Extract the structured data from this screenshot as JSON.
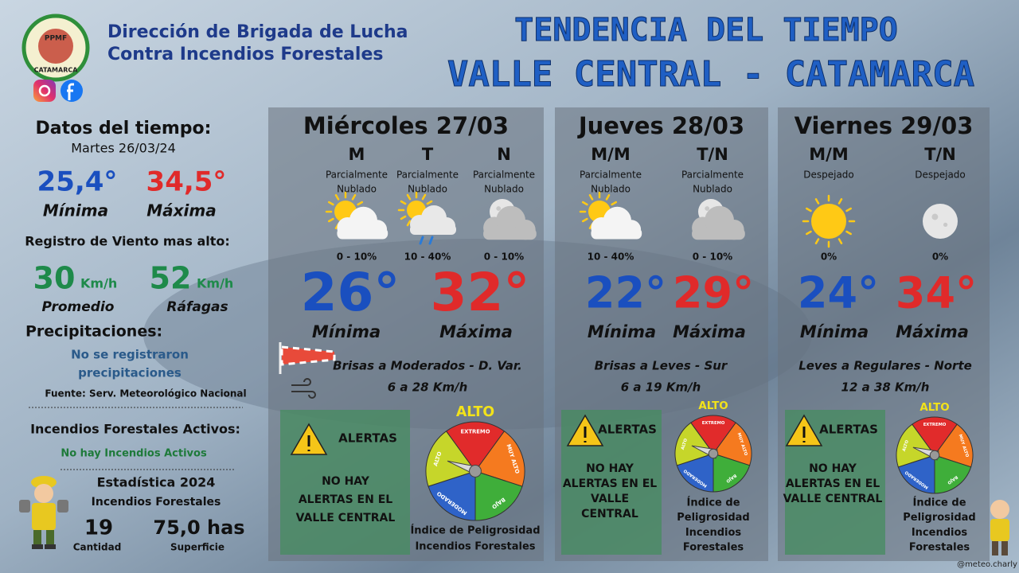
{
  "header": {
    "logo": {
      "top": "PPMF",
      "bottom": "CATAMARCA"
    },
    "org_line1": "Dirección de Brigada de Lucha",
    "org_line2": "Contra Incendios Forestales",
    "title_line1": "TENDENCIA DEL TIEMPO",
    "title_line2": "VALLE CENTRAL - CATAMARCA"
  },
  "sidebar": {
    "weather_title": "Datos del tiempo:",
    "date": "Martes 26/03/24",
    "min_value": "25,4°",
    "min_label": "Mínima",
    "max_value": "34,5°",
    "max_label": "Máxima",
    "wind_title": "Registro de Viento mas alto:",
    "wind_avg": "30",
    "wind_avg_unit": "Km/h",
    "wind_avg_label": "Promedio",
    "wind_gust": "52",
    "wind_gust_unit": "Km/h",
    "wind_gust_label": "Ráfagas",
    "precip_title": "Precipitaciones:",
    "precip_text": [
      "No se registraron",
      "precipitaciones"
    ],
    "source": "Fuente: Serv. Meteorológico Nacional",
    "fires_title": "Incendios Forestales Activos:",
    "fires_text": "No hay Incendios Activos",
    "stats_title": "Estadística 2024",
    "stats_subtitle": "Incendios Forestales",
    "count": "19",
    "count_label": "Cantidad",
    "area": "75,0 has",
    "area_label": "Superficie"
  },
  "gauge_labels": [
    "EXTREMO",
    "MUY ALTO",
    "BAJO",
    "MODERADO",
    "ALTO"
  ],
  "days": [
    {
      "day": "Miércoles 27/03",
      "periods": [
        {
          "label": "M",
          "sky": [
            "Parcialmente",
            "Nublado"
          ],
          "rain": "0 - 10%"
        },
        {
          "label": "T",
          "sky": [
            "Parcialmente",
            "Nublado"
          ],
          "rain": "10 - 40%"
        },
        {
          "label": "N",
          "sky": [
            "Parcialmente",
            "Nublado"
          ],
          "rain": "0 - 10%"
        }
      ],
      "min": "26°",
      "min_label": "Mínima",
      "max": "32°",
      "max_label": "Máxima",
      "wind": [
        "Brisas a Moderados  - D. Var.",
        "6 a 28 Km/h"
      ],
      "alert_title": "ALERTAS",
      "alert_text": [
        "NO HAY",
        "ALERTAS EN EL",
        "VALLE CENTRAL"
      ],
      "gauge_level": "ALTO",
      "index_text": [
        "Índice de Peligrosidad",
        "Incendios Forestales"
      ]
    },
    {
      "day": "Jueves 28/03",
      "periods": [
        {
          "label": "M/M",
          "sky": [
            "Parcialmente",
            "Nublado"
          ],
          "rain": "10 - 40%"
        },
        {
          "label": "T/N",
          "sky": [
            "Parcialmente",
            "Nublado"
          ],
          "rain": "0 - 10%"
        }
      ],
      "min": "22°",
      "min_label": "Mínima",
      "max": "29°",
      "max_label": "Máxima",
      "wind": [
        "Brisas a Leves - Sur",
        "6 a 19 Km/h"
      ],
      "alert_title": "ALERTAS",
      "alert_text": [
        "NO HAY",
        "ALERTAS EN EL",
        "VALLE",
        "CENTRAL"
      ],
      "gauge_level": "ALTO",
      "index_text": [
        "Índice de",
        "Peligrosidad",
        "Incendios",
        "Forestales"
      ]
    },
    {
      "day": "Viernes 29/03",
      "periods": [
        {
          "label": "M/M",
          "sky": [
            "Despejado"
          ],
          "rain": "0%"
        },
        {
          "label": "T/N",
          "sky": [
            "Despejado"
          ],
          "rain": "0%"
        }
      ],
      "min": "24°",
      "min_label": "Mínima",
      "max": "34°",
      "max_label": "Máxima",
      "wind": [
        "Leves a Regulares - Norte",
        "12 a 38 Km/h"
      ],
      "alert_title": "ALERTAS",
      "alert_text": [
        "NO HAY",
        "ALERTAS EN EL",
        "VALLE CENTRAL"
      ],
      "gauge_level": "ALTO",
      "index_text": [
        "Índice de",
        "Peligrosidad",
        "Incendios",
        "Forestales"
      ]
    }
  ],
  "credit": "@meteo.charly"
}
